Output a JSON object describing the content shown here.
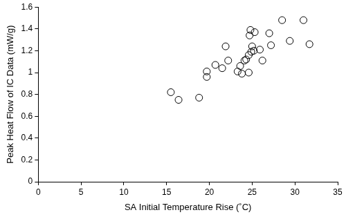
{
  "chart_data": {
    "type": "scatter",
    "x_label": "SA Initial Temperature Rise (˚C)",
    "y_label": "Peak Heat Flow of IC Data (mW/g)",
    "x": [
      15.5,
      16.4,
      18.8,
      19.7,
      19.7,
      20.7,
      21.5,
      21.9,
      22.2,
      23.3,
      23.6,
      23.8,
      24.1,
      24.3,
      24.6,
      24.6,
      24.7,
      24.8,
      24.9,
      25.0,
      25.2,
      25.3,
      25.9,
      26.2,
      27.0,
      27.2,
      28.5,
      29.4,
      31.0,
      31.7
    ],
    "values": [
      0.82,
      0.75,
      0.77,
      1.01,
      0.96,
      1.07,
      1.04,
      1.24,
      1.11,
      1.01,
      1.06,
      0.99,
      1.11,
      1.12,
      1.0,
      1.16,
      1.34,
      1.39,
      1.19,
      1.24,
      1.2,
      1.37,
      1.21,
      1.11,
      1.36,
      1.25,
      1.48,
      1.29,
      1.48,
      1.26
    ],
    "color": "#000000",
    "marker": "circle",
    "xlim": [
      0,
      35
    ],
    "xticks": [
      0,
      5,
      10,
      15,
      20,
      25,
      30,
      35
    ],
    "ylim": [
      0,
      1.6
    ],
    "yticks": [
      0,
      0.2,
      0.4,
      0.6,
      0.8,
      1,
      1.2,
      1.4,
      1.6
    ],
    "grid": false
  }
}
